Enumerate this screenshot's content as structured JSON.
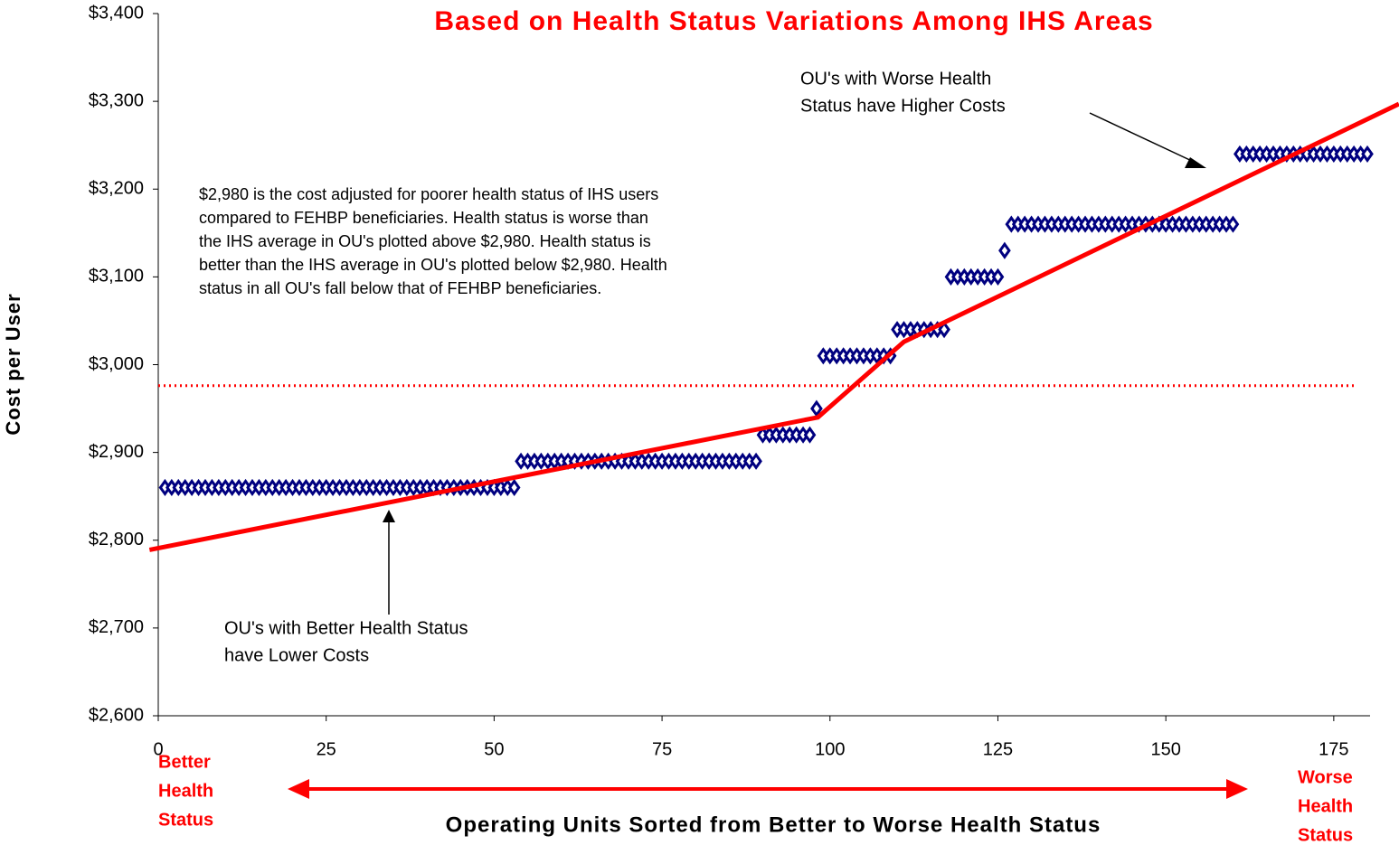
{
  "chart_data": {
    "type": "scatter",
    "title": "Based on Health Status Variations Among IHS Areas",
    "xlabel": "Operating Units Sorted from Better to Worse Health Status",
    "ylabel": "Cost per User",
    "xlim": [
      0,
      180
    ],
    "ylim": [
      2600,
      3400
    ],
    "xticks": [
      0,
      25,
      50,
      75,
      100,
      125,
      150,
      175
    ],
    "yticks": [
      {
        "value": 2600,
        "label": "$2,600"
      },
      {
        "value": 2700,
        "label": "$2,700"
      },
      {
        "value": 2800,
        "label": "$2,800"
      },
      {
        "value": 2900,
        "label": "$2,900"
      },
      {
        "value": 3000,
        "label": "$3,000"
      },
      {
        "value": 3100,
        "label": "$3,100"
      },
      {
        "value": 3200,
        "label": "$3,200"
      },
      {
        "value": 3300,
        "label": "$3,300"
      },
      {
        "value": 3400,
        "label": "$3,400"
      }
    ],
    "series": [
      {
        "color": "#000080",
        "x": [
          1,
          2,
          3,
          4,
          5,
          6,
          7,
          8,
          9,
          10,
          11,
          12,
          13,
          14,
          15,
          16,
          17,
          18,
          19,
          20,
          21,
          22,
          23,
          24,
          25,
          26,
          27,
          28,
          29,
          30,
          31,
          32,
          33,
          34,
          35,
          36,
          37,
          38,
          39,
          40,
          41,
          42,
          43,
          44,
          45,
          46,
          47,
          48,
          49,
          50,
          51,
          52,
          53,
          54,
          55,
          56,
          57,
          58,
          59,
          60,
          61,
          62,
          63,
          64,
          65,
          66,
          67,
          68,
          69,
          70,
          71,
          72,
          73,
          74,
          75,
          76,
          77,
          78,
          79,
          80,
          81,
          82,
          83,
          84,
          85,
          86,
          87,
          88,
          89,
          90,
          91,
          92,
          93,
          94,
          95,
          96,
          97,
          98,
          99,
          100,
          101,
          102,
          103,
          104,
          105,
          106,
          107,
          108,
          109,
          110,
          111,
          112,
          113,
          114,
          115,
          116,
          117,
          118,
          119,
          120,
          121,
          122,
          123,
          124,
          125,
          126,
          127,
          128,
          129,
          130,
          131,
          132,
          133,
          134,
          135,
          136,
          137,
          138,
          139,
          140,
          141,
          142,
          143,
          144,
          145,
          146,
          147,
          148,
          149,
          150,
          151,
          152,
          153,
          154,
          155,
          156,
          157,
          158,
          159,
          160,
          161,
          162,
          163,
          164,
          165,
          166,
          167,
          168,
          169,
          170,
          171,
          172,
          173,
          174,
          175,
          176,
          177,
          178,
          179,
          180
        ],
        "values": [
          2860,
          2860,
          2860,
          2860,
          2860,
          2860,
          2860,
          2860,
          2860,
          2860,
          2860,
          2860,
          2860,
          2860,
          2860,
          2860,
          2860,
          2860,
          2860,
          2860,
          2860,
          2860,
          2860,
          2860,
          2860,
          2860,
          2860,
          2860,
          2860,
          2860,
          2860,
          2860,
          2860,
          2860,
          2860,
          2860,
          2860,
          2860,
          2860,
          2860,
          2860,
          2860,
          2860,
          2860,
          2860,
          2860,
          2860,
          2860,
          2860,
          2860,
          2860,
          2860,
          2860,
          2890,
          2890,
          2890,
          2890,
          2890,
          2890,
          2890,
          2890,
          2890,
          2890,
          2890,
          2890,
          2890,
          2890,
          2890,
          2890,
          2890,
          2890,
          2890,
          2890,
          2890,
          2890,
          2890,
          2890,
          2890,
          2890,
          2890,
          2890,
          2890,
          2890,
          2890,
          2890,
          2890,
          2890,
          2890,
          2890,
          2920,
          2920,
          2920,
          2920,
          2920,
          2920,
          2920,
          2920,
          2950,
          3010,
          3010,
          3010,
          3010,
          3010,
          3010,
          3010,
          3010,
          3010,
          3010,
          3010,
          3040,
          3040,
          3040,
          3040,
          3040,
          3040,
          3040,
          3040,
          3100,
          3100,
          3100,
          3100,
          3100,
          3100,
          3100,
          3100,
          3130,
          3160,
          3160,
          3160,
          3160,
          3160,
          3160,
          3160,
          3160,
          3160,
          3160,
          3160,
          3160,
          3160,
          3160,
          3160,
          3160,
          3160,
          3160,
          3160,
          3160,
          3160,
          3160,
          3160,
          3160,
          3160,
          3160,
          3160,
          3160,
          3160,
          3160,
          3160,
          3160,
          3160,
          3160,
          3240,
          3240,
          3240,
          3240,
          3240,
          3240,
          3240,
          3240,
          3240,
          3240,
          3240,
          3240,
          3240,
          3240,
          3240,
          3240,
          3240,
          3240,
          3240,
          3240
        ]
      }
    ],
    "trend": {
      "color": "#ff0000",
      "x": [
        -1.3,
        98.2,
        111,
        184.7
      ],
      "y": [
        2789,
        2940,
        3026,
        3297
      ]
    },
    "reference": {
      "color": "#ff0000",
      "value": 2976,
      "x": [
        0,
        178
      ]
    },
    "annotations": {
      "note": [
        "$2,980 is the cost adjusted for poorer health status of IHS users",
        "compared to FEHBP beneficiaries.  Health status is worse than",
        "the IHS average in OU's plotted above $2,980. Health status is",
        "better than the IHS average in OU's plotted below $2,980. Health",
        "status in all OU's fall below that of FEHBP beneficiaries."
      ],
      "worse": [
        "OU's with Worse Health",
        "Status have Higher Costs"
      ],
      "better": [
        "OU's with Better Health Status",
        "have Lower Costs"
      ],
      "left": [
        "Better",
        "Health",
        "Status"
      ],
      "right": [
        "Worse",
        "Health",
        "Status"
      ]
    }
  }
}
